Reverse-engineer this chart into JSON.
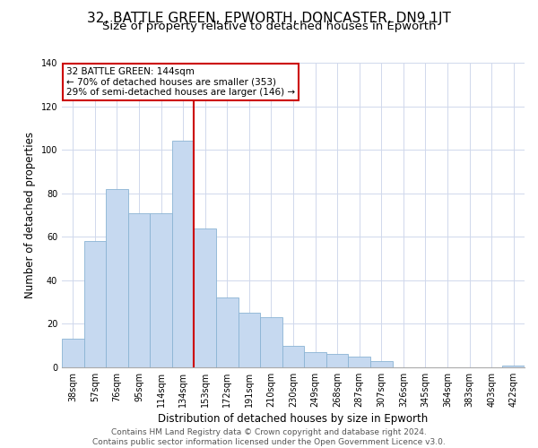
{
  "title": "32, BATTLE GREEN, EPWORTH, DONCASTER, DN9 1JT",
  "subtitle": "Size of property relative to detached houses in Epworth",
  "xlabel": "Distribution of detached houses by size in Epworth",
  "ylabel": "Number of detached properties",
  "categories": [
    "38sqm",
    "57sqm",
    "76sqm",
    "95sqm",
    "114sqm",
    "134sqm",
    "153sqm",
    "172sqm",
    "191sqm",
    "210sqm",
    "230sqm",
    "249sqm",
    "268sqm",
    "287sqm",
    "307sqm",
    "326sqm",
    "345sqm",
    "364sqm",
    "383sqm",
    "403sqm",
    "422sqm"
  ],
  "values": [
    13,
    58,
    82,
    71,
    71,
    104,
    64,
    32,
    25,
    23,
    10,
    7,
    6,
    5,
    3,
    0,
    0,
    0,
    0,
    0,
    1
  ],
  "bar_color": "#c6d9f0",
  "bar_edge_color": "#8ab4d4",
  "vline_x": 5.5,
  "vline_color": "#cc0000",
  "annotation_text": "32 BATTLE GREEN: 144sqm\n← 70% of detached houses are smaller (353)\n29% of semi-detached houses are larger (146) →",
  "annotation_box_color": "#ffffff",
  "annotation_box_edge": "#cc0000",
  "ylim": [
    0,
    140
  ],
  "yticks": [
    0,
    20,
    40,
    60,
    80,
    100,
    120,
    140
  ],
  "footer_line1": "Contains HM Land Registry data © Crown copyright and database right 2024.",
  "footer_line2": "Contains public sector information licensed under the Open Government Licence v3.0.",
  "title_fontsize": 11,
  "subtitle_fontsize": 9.5,
  "tick_fontsize": 7,
  "ylabel_fontsize": 8.5,
  "xlabel_fontsize": 8.5,
  "footer_fontsize": 6.5,
  "annotation_fontsize": 7.5
}
